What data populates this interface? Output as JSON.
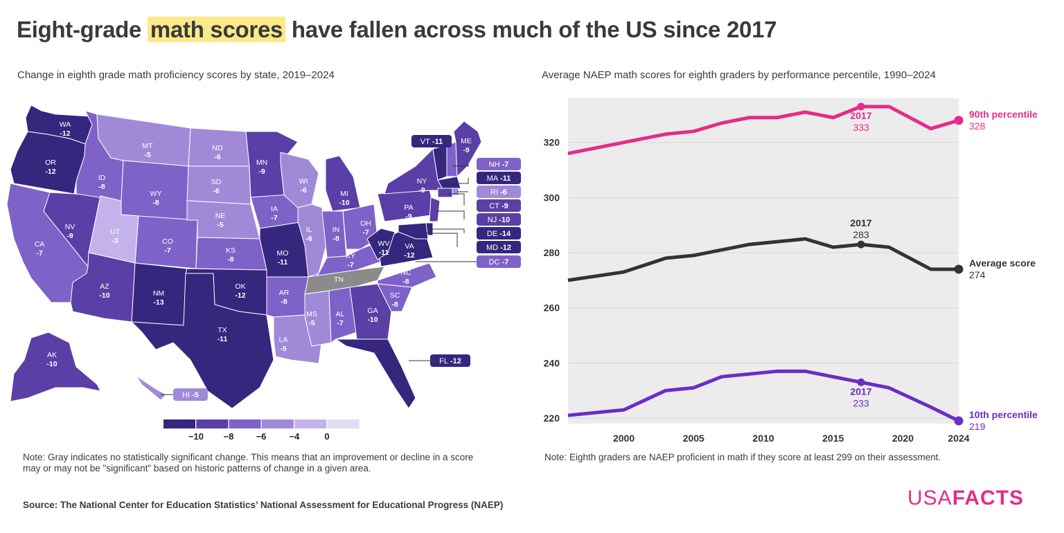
{
  "title": {
    "before": "Eight-grade",
    "highlight": "math scores",
    "after": "have fallen across much of the US since 2017"
  },
  "map": {
    "subtitle": "Change in eighth grade math proficiency scores by state, 2019–2024",
    "states": [
      {
        "code": "WA",
        "value": -12
      },
      {
        "code": "OR",
        "value": -12
      },
      {
        "code": "ID",
        "value": -8
      },
      {
        "code": "MT",
        "value": -5
      },
      {
        "code": "ND",
        "value": -6
      },
      {
        "code": "SD",
        "value": -6
      },
      {
        "code": "WY",
        "value": -8
      },
      {
        "code": "NV",
        "value": -9
      },
      {
        "code": "UT",
        "value": -3
      },
      {
        "code": "CA",
        "value": -7
      },
      {
        "code": "CO",
        "value": -7
      },
      {
        "code": "NE",
        "value": -5
      },
      {
        "code": "KS",
        "value": -8
      },
      {
        "code": "AZ",
        "value": -10
      },
      {
        "code": "NM",
        "value": -13
      },
      {
        "code": "OK",
        "value": -12
      },
      {
        "code": "TX",
        "value": -11
      },
      {
        "code": "MN",
        "value": -9
      },
      {
        "code": "IA",
        "value": -7
      },
      {
        "code": "MO",
        "value": -11
      },
      {
        "code": "AR",
        "value": -8
      },
      {
        "code": "LA",
        "value": -5
      },
      {
        "code": "WI",
        "value": -6
      },
      {
        "code": "IL",
        "value": -6
      },
      {
        "code": "MI",
        "value": -10
      },
      {
        "code": "IN",
        "value": -8
      },
      {
        "code": "OH",
        "value": -7
      },
      {
        "code": "KY",
        "value": -7
      },
      {
        "code": "TN",
        "value": null
      },
      {
        "code": "MS",
        "value": -5
      },
      {
        "code": "AL",
        "value": -7
      },
      {
        "code": "GA",
        "value": -10
      },
      {
        "code": "FL",
        "value": -12
      },
      {
        "code": "SC",
        "value": -8
      },
      {
        "code": "NC",
        "value": -8
      },
      {
        "code": "VA",
        "value": -12
      },
      {
        "code": "WV",
        "value": -11
      },
      {
        "code": "PA",
        "value": -9
      },
      {
        "code": "NY",
        "value": -9
      },
      {
        "code": "ME",
        "value": -9
      },
      {
        "code": "AK",
        "value": -10
      },
      {
        "code": "HI",
        "value": -5
      },
      {
        "code": "VT",
        "value": -11
      },
      {
        "code": "NH",
        "value": -7
      },
      {
        "code": "MA",
        "value": -11
      },
      {
        "code": "RI",
        "value": -6
      },
      {
        "code": "CT",
        "value": -9
      },
      {
        "code": "NJ",
        "value": -10
      },
      {
        "code": "DE",
        "value": -14
      },
      {
        "code": "MD",
        "value": -12
      },
      {
        "code": "DC",
        "value": -7
      }
    ],
    "legend": {
      "ticks": [
        "−10",
        "−8",
        "−6",
        "−4",
        "0"
      ]
    },
    "colors": {
      "darkest": "#35267e",
      "dark": "#5a3fa6",
      "mid": "#7e62c8",
      "light": "#a08ad8",
      "lighter": "#c3b3ea",
      "lightest": "#e2dbf6",
      "gray": "#8b8b8b"
    },
    "note": "Note: Gray indicates no statistically significant change. This means that an improvement or decline in a score may or may not be \"significant\" based on historic patterns of change in a given area."
  },
  "chart": {
    "subtitle": "Average NAEP math scores for eighth graders by performance percentile, 1990–2024",
    "note": "Note: Eighth graders are NAEP proficient in math if they score at least 299 on their assessment."
  },
  "chart_data": {
    "type": "line",
    "title": "Average NAEP math scores for eighth graders by performance percentile, 1990–2024",
    "x_ticks": [
      2000,
      2005,
      2010,
      2015,
      2020,
      2024
    ],
    "y_ticks": [
      220,
      240,
      260,
      280,
      300,
      320
    ],
    "xlim": [
      1996,
      2024
    ],
    "ylim": [
      218,
      336
    ],
    "grid": true,
    "series": [
      {
        "name": "90th percentile",
        "color": "#e62b8a",
        "end_label": "90th percentile",
        "end_value": "328",
        "annotation": {
          "year": "2017",
          "value": "333"
        },
        "x": [
          1996,
          2000,
          2003,
          2005,
          2007,
          2009,
          2011,
          2013,
          2015,
          2017,
          2019,
          2022,
          2024
        ],
        "y": [
          316,
          320,
          323,
          324,
          327,
          329,
          329,
          331,
          329,
          333,
          333,
          325,
          328
        ]
      },
      {
        "name": "Average score",
        "color": "#333333",
        "end_label": "Average score",
        "end_value": "274",
        "annotation": {
          "year": "2017",
          "value": "283"
        },
        "x": [
          1996,
          2000,
          2003,
          2005,
          2007,
          2009,
          2011,
          2013,
          2015,
          2017,
          2019,
          2022,
          2024
        ],
        "y": [
          270,
          273,
          278,
          279,
          281,
          283,
          284,
          285,
          282,
          283,
          282,
          274,
          274
        ]
      },
      {
        "name": "10th percentile",
        "color": "#6a2dc7",
        "end_label": "10th percentile",
        "end_value": "219",
        "annotation": {
          "year": "2017",
          "value": "233"
        },
        "x": [
          1996,
          2000,
          2003,
          2005,
          2007,
          2009,
          2011,
          2013,
          2015,
          2017,
          2019,
          2022,
          2024
        ],
        "y": [
          221,
          223,
          230,
          231,
          235,
          236,
          237,
          237,
          235,
          233,
          231,
          224,
          219
        ]
      }
    ]
  },
  "source": "Source: The National Center for Education Statistics’ National Assessment for Educational Progress (NAEP)",
  "logo": {
    "left": "USA",
    "right": "FACTS"
  }
}
